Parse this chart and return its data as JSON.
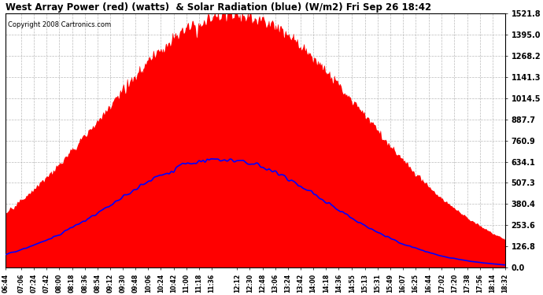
{
  "title": "West Array Power (red) (watts)  & Solar Radiation (blue) (W/m2) Fri Sep 26 18:42",
  "copyright": "Copyright 2008 Cartronics.com",
  "yticks": [
    0.0,
    126.8,
    253.6,
    380.4,
    507.3,
    634.1,
    760.9,
    887.7,
    1014.5,
    1141.3,
    1268.2,
    1395.0,
    1521.8
  ],
  "ymax": 1521.8,
  "ymin": 0.0,
  "xtick_labels": [
    "06:44",
    "07:06",
    "07:24",
    "07:42",
    "08:00",
    "08:18",
    "08:36",
    "08:54",
    "09:12",
    "09:30",
    "09:48",
    "10:06",
    "10:24",
    "10:42",
    "11:00",
    "11:18",
    "11:36",
    "12:12",
    "12:30",
    "12:48",
    "13:06",
    "13:24",
    "13:42",
    "14:00",
    "14:18",
    "14:36",
    "14:55",
    "15:13",
    "15:31",
    "15:49",
    "16:07",
    "16:25",
    "16:44",
    "17:02",
    "17:20",
    "17:38",
    "17:56",
    "18:14",
    "18:32"
  ],
  "background_color": "#ffffff",
  "plot_bg_color": "#ffffff",
  "red_color": "#ff0000",
  "blue_color": "#0000ff",
  "grid_color": "#aaaaaa",
  "title_color": "#000000",
  "tick_color": "#000000",
  "copyright_color": "#000000",
  "red_peak_t": 0.455,
  "red_sigma": 0.26,
  "red_max": 1521.8,
  "blue_peak_t": 0.43,
  "blue_sigma": 0.21,
  "blue_max": 650.0
}
